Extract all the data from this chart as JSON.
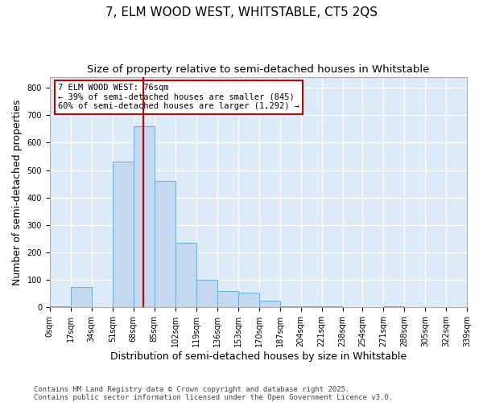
{
  "title": "7, ELM WOOD WEST, WHITSTABLE, CT5 2QS",
  "subtitle": "Size of property relative to semi-detached houses in Whitstable",
  "xlabel": "Distribution of semi-detached houses by size in Whitstable",
  "ylabel": "Number of semi-detached properties",
  "bins": [
    0,
    17,
    34,
    51,
    68,
    85,
    102,
    119,
    136,
    153,
    170,
    187,
    204,
    221,
    238,
    254,
    271,
    288,
    305,
    322,
    339
  ],
  "bin_labels": [
    "0sqm",
    "17sqm",
    "34sqm",
    "51sqm",
    "68sqm",
    "85sqm",
    "102sqm",
    "119sqm",
    "136sqm",
    "153sqm",
    "170sqm",
    "187sqm",
    "204sqm",
    "221sqm",
    "238sqm",
    "254sqm",
    "271sqm",
    "288sqm",
    "305sqm",
    "322sqm",
    "339sqm"
  ],
  "counts": [
    3,
    75,
    2,
    530,
    660,
    460,
    235,
    100,
    60,
    55,
    25,
    5,
    5,
    5,
    2,
    2,
    3,
    1,
    1,
    1
  ],
  "bar_color": "#c5d8f0",
  "bar_edge_color": "#6baed6",
  "bg_color": "#ddeaf8",
  "grid_color": "#ffffff",
  "vline_x": 76,
  "vline_color": "#cc0000",
  "annotation_text": "7 ELM WOOD WEST: 76sqm\n← 39% of semi-detached houses are smaller (845)\n60% of semi-detached houses are larger (1,292) →",
  "annotation_box_edge_color": "#cc0000",
  "ylim_max": 840,
  "yticks": [
    0,
    100,
    200,
    300,
    400,
    500,
    600,
    700,
    800
  ],
  "footnote": "Contains HM Land Registry data © Crown copyright and database right 2025.\nContains public sector information licensed under the Open Government Licence v3.0.",
  "title_fontsize": 11,
  "subtitle_fontsize": 9.5,
  "axis_label_fontsize": 9,
  "tick_fontsize": 7,
  "annotation_fontsize": 7.5,
  "footnote_fontsize": 6.5
}
